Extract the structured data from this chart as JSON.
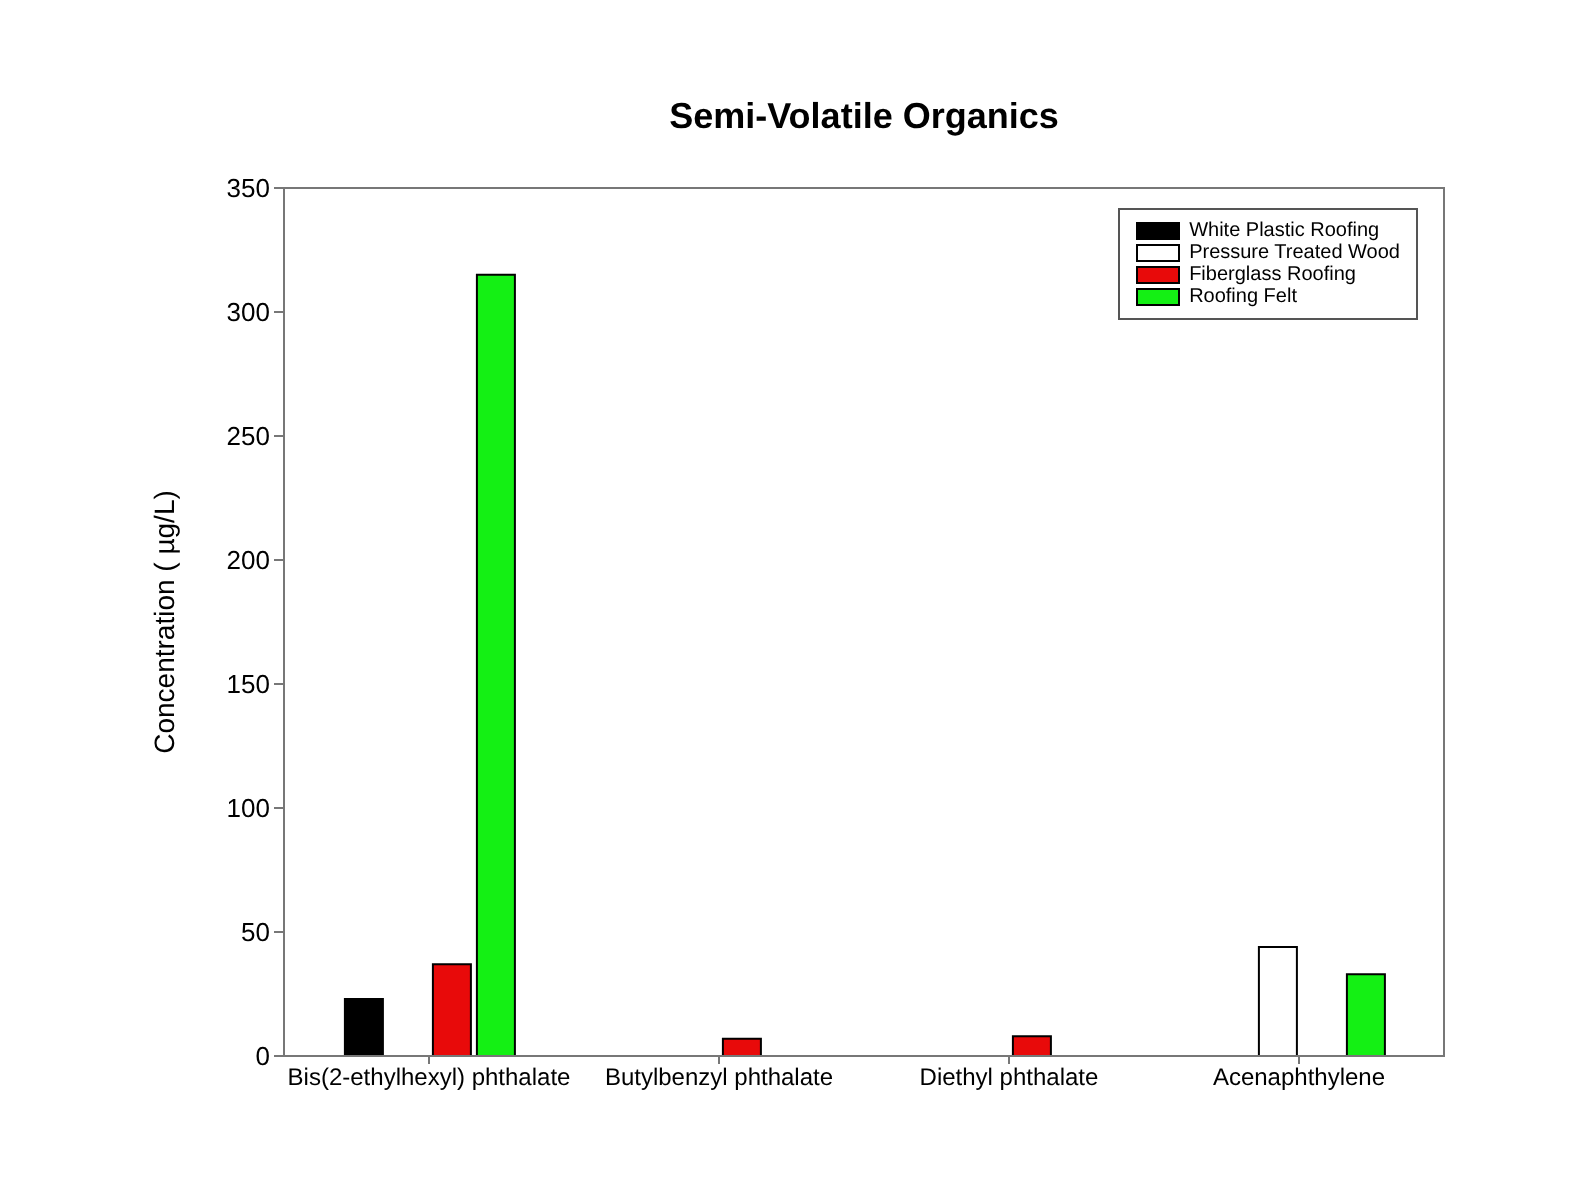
{
  "chart_data": {
    "type": "bar",
    "title": "Semi-Volatile Organics",
    "ylabel": "Concentration ( µg/L)",
    "categories": [
      "Bis(2-ethylhexyl) phthalate",
      "Butylbenzyl phthalate",
      "Diethyl phthalate",
      "Acenaphthylene"
    ],
    "series": [
      {
        "name": "White Plastic Roofing",
        "color": "#000000",
        "values": [
          23,
          null,
          null,
          null
        ]
      },
      {
        "name": "Pressure Treated Wood",
        "color": "#ffffff",
        "values": [
          null,
          null,
          null,
          44
        ]
      },
      {
        "name": "Fiberglass Roofing",
        "color": "#e80a0a",
        "values": [
          37,
          7,
          8,
          null
        ]
      },
      {
        "name": "Roofing Felt",
        "color": "#14f014",
        "values": [
          315,
          null,
          null,
          33
        ]
      }
    ],
    "ylim": [
      0,
      350
    ],
    "yticks": [
      0,
      50,
      100,
      150,
      200,
      250,
      300,
      350
    ],
    "grid": false,
    "legend": "top right"
  }
}
